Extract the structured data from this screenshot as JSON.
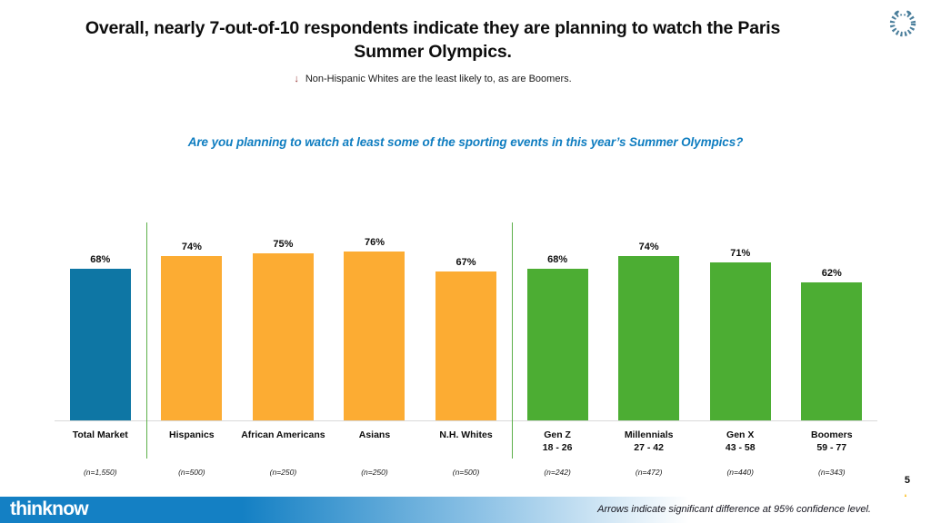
{
  "slide": {
    "title": "Overall, nearly 7-out-of-10 respondents indicate they are planning to watch the Paris Summer Olympics.",
    "subtitle": {
      "icon": "down-arrow",
      "arrow_glyph": "↓",
      "text": "Non-Hispanic Whites are the least likely to, as are Boomers."
    },
    "question": "Are you planning to watch at least some of the sporting events in this year’s Summer Olympics?",
    "page_number": "5"
  },
  "chart_data": {
    "type": "bar",
    "title": "Are you planning to watch at least some of the sporting events in this year’s Summer Olympics?",
    "categories": [
      "Total Market",
      "Hispanics",
      "African Americans",
      "Asians",
      "N.H. Whites",
      "Gen Z",
      "Millennials",
      "Gen X",
      "Boomers"
    ],
    "sublabels": [
      "",
      "",
      "",
      "",
      "",
      "18 - 26",
      "27 - 42",
      "43 - 58",
      "59 - 77"
    ],
    "sample_sizes": [
      "(n=1,550)",
      "(n=500)",
      "(n=250)",
      "(n=250)",
      "(n=500)",
      "(n=242)",
      "(n=472)",
      "(n=440)",
      "(n=343)"
    ],
    "values": [
      68,
      74,
      75,
      76,
      67,
      68,
      74,
      71,
      62
    ],
    "value_labels": [
      "68%",
      "74%",
      "75%",
      "76%",
      "67%",
      "68%",
      "74%",
      "71%",
      "62%"
    ],
    "bar_colors": [
      "#0e76a4",
      "#fcac33",
      "#fcac33",
      "#fcac33",
      "#fcac33",
      "#4cad33",
      "#4cad33",
      "#4cad33",
      "#4cad33"
    ],
    "ylim": [
      0,
      100
    ],
    "grid": false,
    "legend": false,
    "separator_color": "#5cb04a",
    "separators_after_index": [
      0,
      4
    ],
    "baseline_color": "#d9d9d9"
  },
  "footer": {
    "brand": "thinknow",
    "note": "Arrows indicate significant difference at 95% confidence level.",
    "podium": {
      "first": "1",
      "second": "2",
      "third": "3"
    }
  },
  "colors": {
    "question_blue": "#0f7dc0",
    "footer_blue": "#1480c4",
    "subtitle_arrow_red": "#963634",
    "wreath_blue": "#4a7e9b",
    "podium_star_gold": "#fcba12",
    "podium_dark_blue": "#1673c7",
    "podium_light_blue": "#3da0e0",
    "total_bar": "#0e76a4",
    "ethnic_bar": "#fcac33",
    "generation_bar": "#4cad33"
  }
}
